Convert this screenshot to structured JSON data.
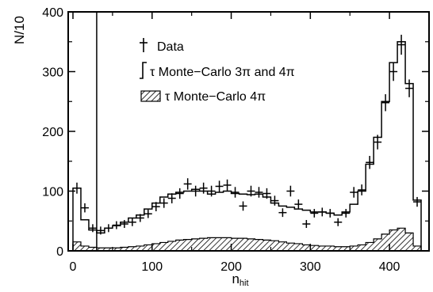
{
  "chart_data": {
    "type": "histogram",
    "title": "",
    "xlabel": "n",
    "xlabel_subscript": "hit",
    "ylabel": "N/10",
    "xlim": [
      0,
      450
    ],
    "ylim": [
      0,
      400
    ],
    "xticks": [
      0,
      100,
      200,
      300,
      400
    ],
    "yticks": [
      0,
      100,
      200,
      300,
      400
    ],
    "cut_line_x": 30,
    "legend": {
      "position": "top-left",
      "entries": [
        {
          "key": "data",
          "label": "Data"
        },
        {
          "key": "mc_total",
          "label": "τ Monte−Carlo 3π and 4π"
        },
        {
          "key": "mc_4pi",
          "label": "τ Monte−Carlo 4π"
        }
      ]
    },
    "bin_width": 10,
    "series": [
      {
        "key": "data",
        "style": "points-with-errors",
        "x": [
          5,
          15,
          25,
          35,
          45,
          55,
          65,
          75,
          85,
          95,
          105,
          115,
          125,
          135,
          145,
          155,
          165,
          175,
          185,
          195,
          205,
          215,
          225,
          235,
          245,
          255,
          265,
          275,
          285,
          295,
          305,
          315,
          325,
          335,
          345,
          355,
          365,
          375,
          385,
          395,
          405,
          415,
          425,
          435
        ],
        "values": [
          105,
          72,
          38,
          34,
          38,
          43,
          45,
          48,
          55,
          62,
          74,
          80,
          88,
          96,
          112,
          100,
          105,
          100,
          108,
          110,
          98,
          75,
          100,
          98,
          96,
          84,
          64,
          100,
          78,
          45,
          63,
          65,
          63,
          48,
          63,
          98,
          102,
          148,
          182,
          248,
          300,
          345,
          272,
          82
        ]
      },
      {
        "key": "mc_total",
        "style": "step",
        "x": [
          5,
          15,
          25,
          35,
          45,
          55,
          65,
          75,
          85,
          95,
          105,
          115,
          125,
          135,
          145,
          155,
          165,
          175,
          185,
          195,
          205,
          215,
          225,
          235,
          245,
          255,
          265,
          275,
          285,
          295,
          305,
          315,
          325,
          335,
          345,
          355,
          365,
          375,
          385,
          395,
          405,
          415,
          425,
          435
        ],
        "values": [
          105,
          52,
          35,
          30,
          38,
          42,
          48,
          55,
          60,
          70,
          80,
          90,
          95,
          98,
          100,
          103,
          100,
          95,
          98,
          100,
          96,
          95,
          94,
          95,
          90,
          80,
          75,
          73,
          70,
          68,
          65,
          65,
          63,
          60,
          65,
          78,
          100,
          145,
          190,
          250,
          315,
          350,
          280,
          85
        ]
      },
      {
        "key": "mc_4pi",
        "style": "hatched-step",
        "x": [
          5,
          15,
          25,
          35,
          45,
          55,
          65,
          75,
          85,
          95,
          105,
          115,
          125,
          135,
          145,
          155,
          165,
          175,
          185,
          195,
          205,
          215,
          225,
          235,
          245,
          255,
          265,
          275,
          285,
          295,
          305,
          315,
          325,
          335,
          345,
          355,
          365,
          375,
          385,
          395,
          405,
          415,
          425,
          435
        ],
        "values": [
          15,
          8,
          6,
          5,
          5,
          5,
          6,
          7,
          8,
          10,
          12,
          14,
          16,
          18,
          19,
          20,
          21,
          22,
          22,
          22,
          21,
          21,
          20,
          19,
          18,
          17,
          15,
          13,
          12,
          10,
          9,
          8,
          8,
          7,
          7,
          8,
          10,
          14,
          20,
          28,
          35,
          38,
          30,
          8
        ]
      }
    ]
  }
}
